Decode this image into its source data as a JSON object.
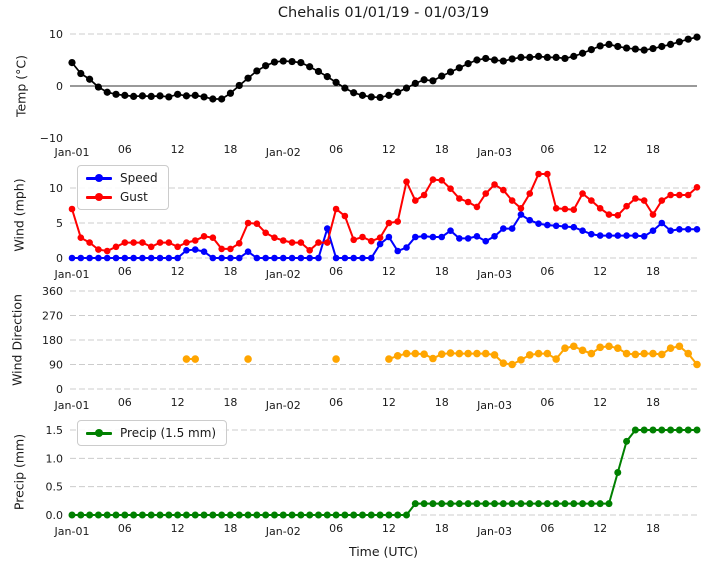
{
  "title": "Chehalis 01/01/19 - 01/03/19",
  "xlabel": "Time (UTC)",
  "x_ticks": {
    "hours": [
      0,
      6,
      12,
      18,
      24,
      30,
      36,
      42,
      48,
      54,
      60,
      66
    ],
    "labels": [
      "Jan-01",
      "06",
      "12",
      "18",
      "Jan-02",
      "06",
      "12",
      "18",
      "Jan-03",
      "06",
      "12",
      "18"
    ],
    "day_label_indices": [
      0,
      4,
      8
    ]
  },
  "hours_total": 72,
  "colors": {
    "temp": "#000000",
    "speed": "#0000ff",
    "gust": "#ff0000",
    "wind_direction": "#ffa500",
    "precip": "#008000",
    "grid": "#cccccc",
    "zero_line": "#333333",
    "text": "#1a1a1a"
  },
  "chart_data": [
    {
      "id": "temp",
      "type": "line",
      "ylabel": "Temp (°C)",
      "ylim": [
        -10,
        10
      ],
      "grid": "horizontal-dashed",
      "yticks": [
        {
          "v": 10,
          "label": "10",
          "line": "dashed"
        },
        {
          "v": 0,
          "label": "0",
          "line": "zero"
        },
        {
          "v": -10,
          "label": "−10",
          "line": "none"
        }
      ],
      "series": [
        {
          "name": "Temp",
          "color": "#000000",
          "x_hours_start": 0,
          "values": [
            4.5,
            2.4,
            1.3,
            -0.2,
            -1.2,
            -1.6,
            -1.8,
            -2.0,
            -1.9,
            -2.0,
            -1.9,
            -2.1,
            -1.6,
            -1.9,
            -1.8,
            -2.1,
            -2.5,
            -2.5,
            -1.4,
            0.1,
            1.5,
            2.9,
            3.9,
            4.6,
            4.8,
            4.7,
            4.5,
            3.7,
            2.8,
            1.8,
            0.7,
            -0.4,
            -1.3,
            -1.8,
            -2.1,
            -2.2,
            -1.8,
            -1.2,
            -0.4,
            0.5,
            1.2,
            1.0,
            1.9,
            2.7,
            3.5,
            4.3,
            5.0,
            5.3,
            5.0,
            4.8,
            5.2,
            5.5,
            5.5,
            5.7,
            5.5,
            5.5,
            5.3,
            5.7,
            6.3,
            7.0,
            7.7,
            8.0,
            7.6,
            7.3,
            7.1,
            6.9,
            7.2,
            7.6,
            8.0,
            8.5,
            9.0,
            9.4
          ]
        }
      ]
    },
    {
      "id": "wind",
      "type": "line",
      "ylabel": "Wind (mph)",
      "ylim": [
        0,
        12.6
      ],
      "grid": "horizontal-dashed",
      "legend": {
        "position": "upper-left",
        "entries": [
          "Speed",
          "Gust"
        ]
      },
      "yticks": [
        {
          "v": 10,
          "label": "10",
          "line": "dashed"
        },
        {
          "v": 5,
          "label": "5",
          "line": "dashed"
        },
        {
          "v": 0,
          "label": "0",
          "line": "dashed"
        }
      ],
      "series": [
        {
          "name": "Speed",
          "color": "#0000ff",
          "x_hours_start": 0,
          "values": [
            0,
            0,
            0,
            0,
            0,
            0,
            0,
            0,
            0,
            0,
            0,
            0,
            0,
            1.1,
            1.2,
            0.9,
            0,
            0,
            0,
            0,
            0.9,
            0,
            0,
            0,
            0,
            0,
            0,
            0,
            0,
            4.2,
            0,
            0,
            0,
            0,
            0,
            2.0,
            3.0,
            1.0,
            1.5,
            3.0,
            3.1,
            3.0,
            3.0,
            3.9,
            2.8,
            2.8,
            3.1,
            2.4,
            3.1,
            4.2,
            4.2,
            6.2,
            5.4,
            4.9,
            4.7,
            4.6,
            4.5,
            4.4,
            3.9,
            3.4,
            3.2,
            3.2,
            3.2,
            3.2,
            3.2,
            3.1,
            3.9,
            5.0,
            3.9,
            4.1,
            4.1,
            4.1
          ]
        },
        {
          "name": "Gust",
          "color": "#ff0000",
          "x_hours_start": 0,
          "values": [
            7.0,
            2.9,
            2.2,
            1.2,
            1.0,
            1.6,
            2.2,
            2.2,
            2.2,
            1.6,
            2.2,
            2.2,
            1.6,
            2.2,
            2.5,
            3.1,
            2.9,
            1.3,
            1.3,
            2.1,
            5.0,
            4.9,
            3.6,
            2.9,
            2.5,
            2.2,
            2.2,
            1.1,
            2.2,
            2.2,
            7.0,
            6.0,
            2.6,
            3.0,
            2.4,
            2.9,
            5.0,
            5.2,
            10.9,
            8.2,
            9.0,
            11.2,
            11.1,
            9.9,
            8.5,
            8.0,
            7.3,
            9.2,
            10.5,
            9.7,
            8.2,
            7.1,
            9.2,
            12.0,
            12.0,
            7.1,
            7.0,
            6.9,
            9.2,
            8.2,
            7.1,
            6.2,
            6.1,
            7.4,
            8.5,
            8.2,
            6.2,
            8.2,
            9.0,
            9.0,
            9.0,
            10.1
          ]
        }
      ]
    },
    {
      "id": "wind_direction",
      "type": "scatter",
      "ylabel": "Wind Direction",
      "ylim": [
        0,
        360
      ],
      "grid": "horizontal-dashed",
      "yticks": [
        {
          "v": 360,
          "label": "360",
          "line": "dashed"
        },
        {
          "v": 270,
          "label": "270",
          "line": "dashed"
        },
        {
          "v": 180,
          "label": "180",
          "line": "dashed"
        },
        {
          "v": 90,
          "label": "90",
          "line": "dashed"
        },
        {
          "v": 0,
          "label": "0",
          "line": "dashed"
        }
      ],
      "series": [
        {
          "name": "Wind Direction",
          "color": "#ffa500",
          "points": [
            [
              13,
              110
            ],
            [
              14,
              110
            ],
            [
              20,
              110
            ],
            [
              30,
              110
            ],
            [
              36,
              110
            ],
            [
              37,
              122
            ],
            [
              38,
              130
            ],
            [
              39,
              130
            ],
            [
              40,
              128
            ],
            [
              41,
              112
            ],
            [
              42,
              128
            ],
            [
              43,
              132
            ],
            [
              44,
              130
            ],
            [
              45,
              130
            ],
            [
              46,
              130
            ],
            [
              47,
              130
            ],
            [
              48,
              125
            ],
            [
              49,
              95
            ],
            [
              50,
              90
            ],
            [
              51,
              107
            ],
            [
              52,
              125
            ],
            [
              53,
              130
            ],
            [
              54,
              130
            ],
            [
              55,
              110
            ],
            [
              56,
              150
            ],
            [
              57,
              157
            ],
            [
              58,
              142
            ],
            [
              59,
              130
            ],
            [
              60,
              153
            ],
            [
              61,
              157
            ],
            [
              62,
              150
            ],
            [
              63,
              130
            ],
            [
              64,
              127
            ],
            [
              65,
              130
            ],
            [
              66,
              130
            ],
            [
              67,
              127
            ],
            [
              68,
              150
            ],
            [
              69,
              157
            ],
            [
              70,
              130
            ],
            [
              71,
              90
            ]
          ]
        }
      ]
    },
    {
      "id": "precip",
      "type": "line",
      "ylabel": "Precip (mm)",
      "ylim": [
        0,
        1.5
      ],
      "grid": "horizontal-dashed",
      "legend": {
        "position": "upper-left",
        "entries": [
          "Precip (1.5 mm)"
        ]
      },
      "yticks": [
        {
          "v": 1.5,
          "label": "1.5",
          "line": "dashed"
        },
        {
          "v": 1.0,
          "label": "1.0",
          "line": "dashed"
        },
        {
          "v": 0.5,
          "label": "0.5",
          "line": "dashed"
        },
        {
          "v": 0,
          "label": "0.0",
          "line": "dashed"
        }
      ],
      "series": [
        {
          "name": "Precip (1.5 mm)",
          "color": "#008000",
          "x_hours_start": 0,
          "values": [
            0,
            0,
            0,
            0,
            0,
            0,
            0,
            0,
            0,
            0,
            0,
            0,
            0,
            0,
            0,
            0,
            0,
            0,
            0,
            0,
            0,
            0,
            0,
            0,
            0,
            0,
            0,
            0,
            0,
            0,
            0,
            0,
            0,
            0,
            0,
            0,
            0,
            0,
            0,
            0.2,
            0.2,
            0.2,
            0.2,
            0.2,
            0.2,
            0.2,
            0.2,
            0.2,
            0.2,
            0.2,
            0.2,
            0.2,
            0.2,
            0.2,
            0.2,
            0.2,
            0.2,
            0.2,
            0.2,
            0.2,
            0.2,
            0.2,
            0.75,
            1.3,
            1.5,
            1.5,
            1.5,
            1.5,
            1.5,
            1.5,
            1.5,
            1.5
          ]
        }
      ]
    }
  ]
}
